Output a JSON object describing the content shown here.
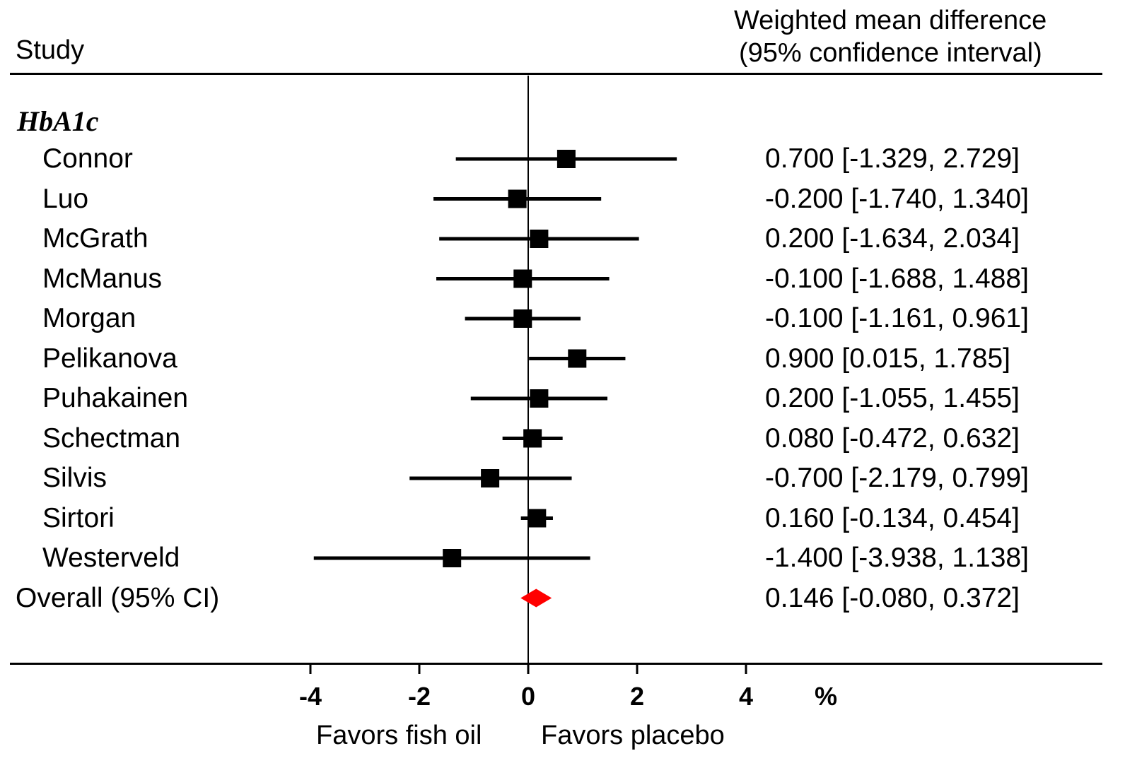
{
  "header": {
    "study_label": "Study",
    "effect_label_line1": "Weighted mean difference",
    "effect_label_line2": "(95% confidence interval)"
  },
  "group_label": "HbA1c",
  "x_unit": "%",
  "direction_labels": {
    "left": "Favors fish oil",
    "right": "Favors placebo"
  },
  "colors": {
    "marker": "#000000",
    "summary": "#ff0000"
  },
  "chart_data": {
    "type": "forest",
    "xlim": [
      -4,
      4
    ],
    "x_ticks": [
      "-4",
      "-2",
      "0",
      "2",
      "4"
    ],
    "xlabel": "%",
    "studies": [
      {
        "name": "Connor",
        "estimate": 0.7,
        "ci_low": -1.329,
        "ci_high": 2.729,
        "label": "0.700 [-1.329, 2.729]"
      },
      {
        "name": "Luo",
        "estimate": -0.2,
        "ci_low": -1.74,
        "ci_high": 1.34,
        "label": "-0.200 [-1.740, 1.340]"
      },
      {
        "name": "McGrath",
        "estimate": 0.2,
        "ci_low": -1.634,
        "ci_high": 2.034,
        "label": "0.200 [-1.634, 2.034]"
      },
      {
        "name": "McManus",
        "estimate": -0.1,
        "ci_low": -1.688,
        "ci_high": 1.488,
        "label": "-0.100 [-1.688, 1.488]"
      },
      {
        "name": "Morgan",
        "estimate": -0.1,
        "ci_low": -1.161,
        "ci_high": 0.961,
        "label": "-0.100 [-1.161, 0.961]"
      },
      {
        "name": "Pelikanova",
        "estimate": 0.9,
        "ci_low": 0.015,
        "ci_high": 1.785,
        "label": "0.900 [0.015, 1.785]"
      },
      {
        "name": "Puhakainen",
        "estimate": 0.2,
        "ci_low": -1.055,
        "ci_high": 1.455,
        "label": "0.200 [-1.055, 1.455]"
      },
      {
        "name": "Schectman",
        "estimate": 0.08,
        "ci_low": -0.472,
        "ci_high": 0.632,
        "label": "0.080 [-0.472, 0.632]"
      },
      {
        "name": "Silvis",
        "estimate": -0.7,
        "ci_low": -2.179,
        "ci_high": 0.799,
        "label": "-0.700 [-2.179, 0.799]"
      },
      {
        "name": "Sirtori",
        "estimate": 0.16,
        "ci_low": -0.134,
        "ci_high": 0.454,
        "label": "0.160 [-0.134, 0.454]"
      },
      {
        "name": "Westerveld",
        "estimate": -1.4,
        "ci_low": -3.938,
        "ci_high": 1.138,
        "label": "-1.400 [-3.938, 1.138]"
      }
    ],
    "overall": {
      "name": "Overall (95% CI)",
      "estimate": 0.146,
      "ci_low": -0.08,
      "ci_high": 0.372,
      "label": "0.146 [-0.080, 0.372]"
    }
  }
}
